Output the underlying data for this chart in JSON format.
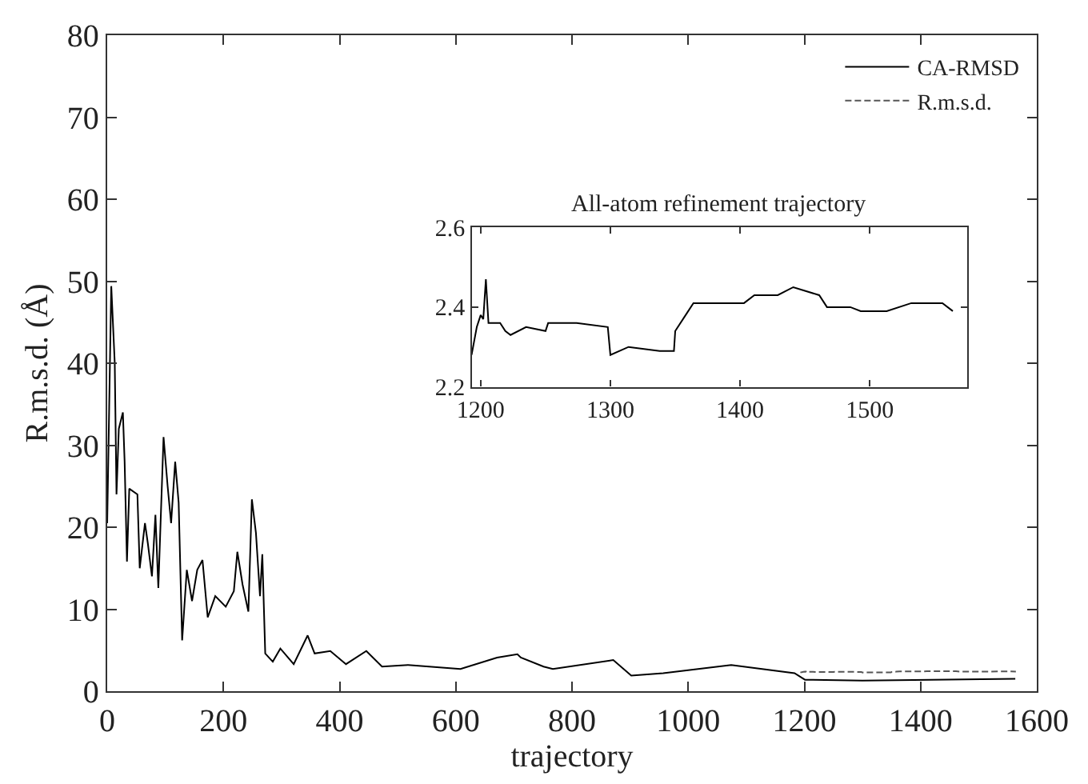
{
  "chart_data": [
    {
      "type": "line",
      "xlabel": "trajectory",
      "ylabel": "R.m.s.d. (Å)",
      "xlim": [
        0,
        1600
      ],
      "ylim": [
        0,
        80
      ],
      "xticks": [
        0,
        200,
        400,
        600,
        800,
        1000,
        1200,
        1400,
        1600
      ],
      "yticks": [
        0,
        10,
        20,
        30,
        40,
        50,
        60,
        70,
        80
      ],
      "legend": "top right",
      "marker": "none",
      "series": [
        {
          "name": "CA-RMSD",
          "color": "#000000",
          "line_style": "solid",
          "x": [
            0,
            7,
            13,
            16,
            20,
            27,
            30,
            34,
            38,
            52,
            56,
            65,
            70,
            77,
            83,
            88,
            97,
            104,
            110,
            117,
            123,
            129,
            137,
            146,
            155,
            164,
            173,
            186,
            204,
            218,
            224,
            233,
            243,
            249,
            256,
            263,
            267,
            272,
            285,
            298,
            321,
            345,
            357,
            384,
            411,
            446,
            473,
            518,
            608,
            671,
            706,
            712,
            751,
            767,
            871,
            902,
            957,
            1074,
            1183,
            1201,
            1300,
            1563
          ],
          "values": [
            20.5,
            49.4,
            40,
            24,
            32,
            34,
            28,
            15.8,
            24.7,
            24,
            15,
            20.5,
            18,
            14,
            21.5,
            12.6,
            31,
            25,
            20.5,
            28,
            23,
            6.2,
            14.8,
            11,
            14.8,
            16,
            9,
            11.6,
            10.3,
            12.2,
            17,
            13,
            9.7,
            23.4,
            19.3,
            11.6,
            16.7,
            4.6,
            3.6,
            5.2,
            3.3,
            6.8,
            4.6,
            4.9,
            3.3,
            4.9,
            3,
            3.2,
            2.7,
            4.1,
            4.5,
            4.1,
            3,
            2.7,
            3.8,
            1.9,
            2.2,
            3.2,
            2.2,
            1.4,
            1.3,
            1.5
          ]
        },
        {
          "name": "R.m.s.d.",
          "color": "#555555",
          "line_style": "dashed",
          "x": [
            1193,
            1197,
            1200,
            1202,
            1204,
            1206,
            1215,
            1219,
            1223,
            1235,
            1250,
            1252,
            1274,
            1298,
            1300,
            1314,
            1338,
            1349,
            1350,
            1358,
            1364,
            1393,
            1403,
            1411,
            1429,
            1441,
            1461,
            1467,
            1485,
            1493,
            1513,
            1532,
            1556,
            1564
          ],
          "values": [
            2.28,
            2.35,
            2.38,
            2.37,
            2.47,
            2.36,
            2.36,
            2.34,
            2.33,
            2.35,
            2.34,
            2.36,
            2.36,
            2.35,
            2.28,
            2.3,
            2.29,
            2.29,
            2.34,
            2.38,
            2.41,
            2.41,
            2.41,
            2.43,
            2.43,
            2.45,
            2.43,
            2.4,
            2.4,
            2.39,
            2.39,
            2.41,
            2.41,
            2.39
          ]
        }
      ]
    },
    {
      "type": "line",
      "title": "All-atom refinement trajectory",
      "xlim": [
        1193,
        1575
      ],
      "ylim": [
        2.2,
        2.6
      ],
      "xticks": [
        1200,
        1300,
        1400,
        1500
      ],
      "yticks": [
        2.2,
        2.4,
        2.6
      ],
      "marker": "none",
      "series": [
        {
          "color": "#000000",
          "line_style": "solid",
          "x": [
            1193,
            1197,
            1200,
            1202,
            1204,
            1206,
            1215,
            1219,
            1223,
            1235,
            1250,
            1252,
            1274,
            1298,
            1300,
            1314,
            1338,
            1349,
            1350,
            1358,
            1364,
            1393,
            1403,
            1411,
            1429,
            1441,
            1461,
            1467,
            1485,
            1493,
            1513,
            1532,
            1556,
            1564
          ],
          "values": [
            2.28,
            2.35,
            2.38,
            2.37,
            2.47,
            2.36,
            2.36,
            2.34,
            2.33,
            2.35,
            2.34,
            2.36,
            2.36,
            2.35,
            2.28,
            2.3,
            2.29,
            2.29,
            2.34,
            2.38,
            2.41,
            2.41,
            2.41,
            2.43,
            2.43,
            2.45,
            2.43,
            2.4,
            2.4,
            2.39,
            2.39,
            2.41,
            2.41,
            2.39
          ]
        }
      ]
    }
  ]
}
